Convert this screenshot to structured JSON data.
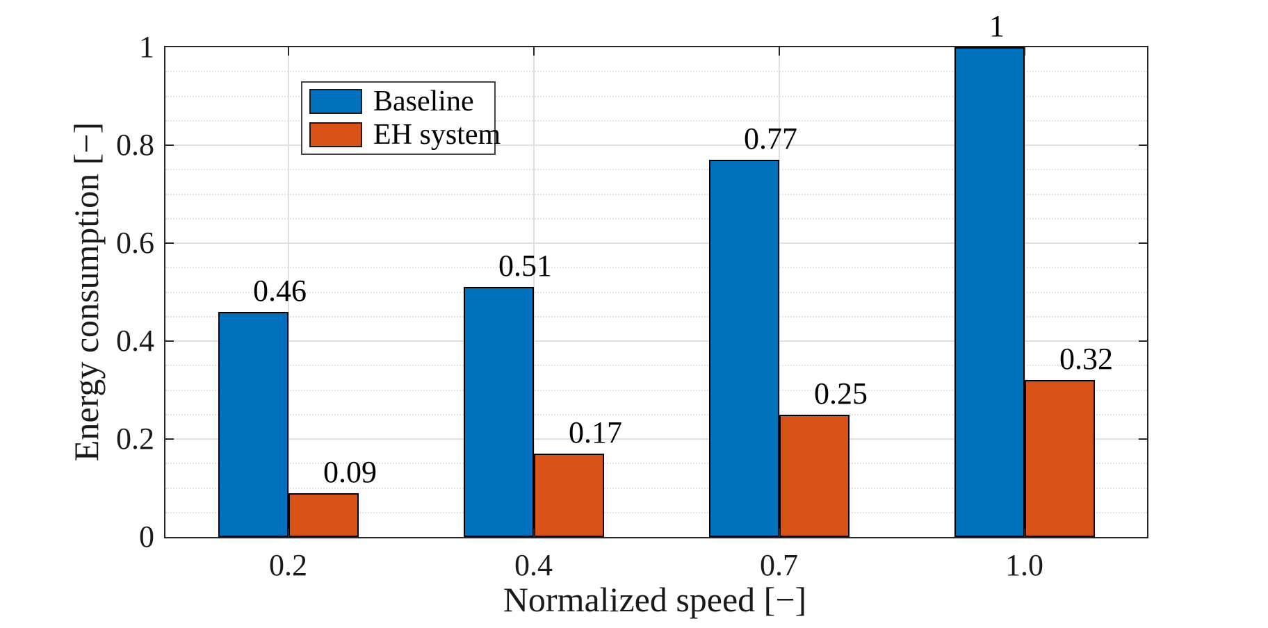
{
  "figure": {
    "background": "#ffffff"
  },
  "chart_data": {
    "type": "bar",
    "title": "",
    "xlabel": "Normalized speed [−]",
    "ylabel": "Energy consumption [−]",
    "categories": [
      "0.2",
      "0.4",
      "0.7",
      "1.0"
    ],
    "series": [
      {
        "name": "Baseline",
        "color": "#0072BD",
        "values": [
          0.46,
          0.51,
          0.77,
          1
        ]
      },
      {
        "name": "EH system",
        "color": "#D95319",
        "values": [
          0.09,
          0.17,
          0.25,
          0.32
        ]
      }
    ],
    "bar_labels": [
      [
        "0.46",
        "0.51",
        "0.77",
        "1"
      ],
      [
        "0.09",
        "0.17",
        "0.25",
        "0.32"
      ]
    ],
    "ylim": [
      0,
      1
    ],
    "yticks": [
      {
        "value": 0,
        "label": "0"
      },
      {
        "value": 0.2,
        "label": "0.2"
      },
      {
        "value": 0.4,
        "label": "0.4"
      },
      {
        "value": 0.6,
        "label": "0.6"
      },
      {
        "value": 0.8,
        "label": "0.8"
      },
      {
        "value": 1,
        "label": "1"
      }
    ],
    "y_minor_step": 0.05,
    "grid": {
      "x_major": true,
      "y_major": true,
      "y_minor": "dotted"
    },
    "legend": {
      "position": "top-left-inside",
      "entries": [
        "Baseline",
        "EH system"
      ]
    },
    "colors": {
      "bar_edge": "#000000",
      "axis": "#262626",
      "grid_major": "#e0e0e0",
      "grid_minor": "#e3e3e3",
      "text": "#1a1a1a"
    }
  }
}
